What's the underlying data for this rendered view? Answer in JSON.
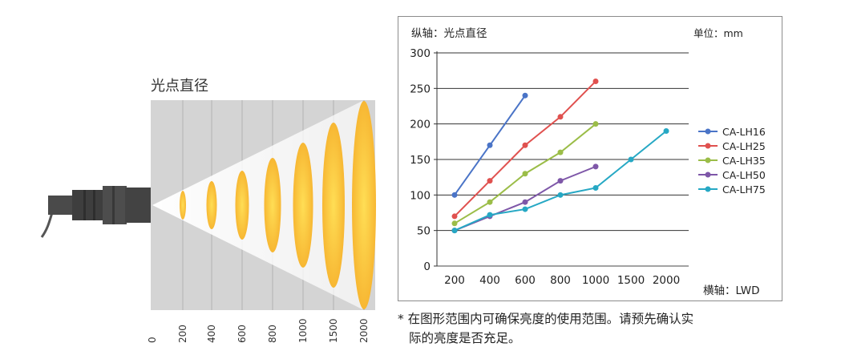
{
  "illustration": {
    "title": "光点直径",
    "distance_labels": [
      "0",
      "200",
      "400",
      "600",
      "800",
      "1000",
      "1500",
      "2000"
    ],
    "spot_color": "#f7b733"
  },
  "chart_data": {
    "type": "line",
    "title": "",
    "ylabel": "纵轴：光点直径",
    "unit_label": "单位：mm",
    "xlabel": "横轴：LWD",
    "categories": [
      "200",
      "400",
      "600",
      "800",
      "1000",
      "1500",
      "2000"
    ],
    "ylim": [
      0,
      300
    ],
    "yticks": [
      0,
      50,
      100,
      150,
      200,
      250,
      300
    ],
    "grid": true,
    "legend_position": "right",
    "series": [
      {
        "name": "CA-LH16",
        "color": "#4a74c7",
        "values": [
          100,
          170,
          240,
          null,
          null,
          null,
          null
        ]
      },
      {
        "name": "CA-LH25",
        "color": "#e0514f",
        "values": [
          70,
          120,
          170,
          210,
          260,
          null,
          null
        ]
      },
      {
        "name": "CA-LH35",
        "color": "#9bbd48",
        "values": [
          60,
          90,
          130,
          160,
          200,
          null,
          null
        ]
      },
      {
        "name": "CA-LH50",
        "color": "#7e57a8",
        "values": [
          50,
          70,
          90,
          120,
          140,
          null,
          null
        ]
      },
      {
        "name": "CA-LH75",
        "color": "#26a8c4",
        "values": [
          50,
          72,
          80,
          100,
          110,
          150,
          190
        ]
      }
    ]
  },
  "note": {
    "line1": "* 在图形范围内可确保亮度的使用范围。请预先确认实",
    "line2": "际的亮度是否充足。"
  }
}
